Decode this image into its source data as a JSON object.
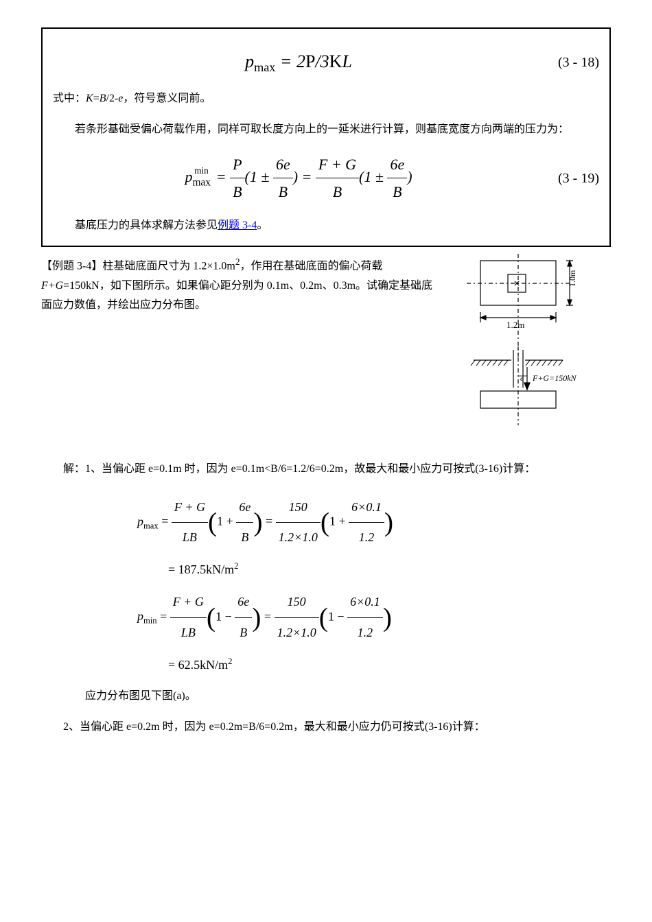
{
  "box": {
    "eq318": {
      "formula_html": "<span class='math'>p<span class='sub upright'>max</span> = 2<span class='upright'>P</span>/3<span class='upright'>K</span>L</span>",
      "num": "(3 - 18)"
    },
    "line1": "式中：<span class='math'>K</span>=<span class='math'>B</span>/2-<span class='math'>e</span>，符号意义同前。",
    "para2": "若条形基础受偏心荷载作用，同样可取长度方向上的一延米进行计算，则基底宽度方向两端的压力为：",
    "eq319": {
      "formula_html": "<span class='math'>p</span><span class='sub'><span class='upright'>max</span></span><span style='font-size:0.6em;vertical-align:0.9em;margin-left:-1.8em'><span class='upright'>min</span></span> &nbsp;= <span class='frac'><span class='num'>P</span><span class='den'>B</span></span>(1 ± <span class='frac'><span class='num'>6e</span><span class='den'>B</span></span>) = <span class='frac'><span class='num'>F + G</span><span class='den'>B</span></span>(1 ± <span class='frac'><span class='num'>6e</span><span class='den'>B</span></span>)",
      "num": "(3 - 19)"
    },
    "line3_prefix": "基底压力的具体求解方法参见",
    "line3_link": "例题 3-4",
    "line3_suffix": "。"
  },
  "example_intro": "【例题 3-4】柱基础底面尺寸为 1.2×1.0m<sup>2</sup>，作用在基础底面的偏心荷载 <span class='math'>F+G</span>=150kN，如下图所示。如果偏心距分别为 0.1m、0.2m、0.3m。试确定基础底面应力数值，并绘出应力分布图。",
  "diagram": {
    "width_label": "1.2m",
    "height_label": "1.0m",
    "load_label": "F+G=150kN",
    "e_label": "e"
  },
  "sol_line1": "解：1、当偏心距 e=0.1m 时，因为 e=0.1m&lt;B/6=1.2/6=0.2m，故最大和最小应力可按式(3-16)计算：",
  "calc1": {
    "l1": "<span class='math'>p<span class='sub upright'>max</span></span> = <span class='frac'><span class='num'>F + G</span><span class='den'>LB</span></span><span class='big-paren'>(</span>1 + <span class='frac'><span class='num'>6e</span><span class='den'>B</span></span><span class='big-paren'>)</span> = <span class='frac'><span class='num'>150</span><span class='den'>1.2×1.0</span></span><span class='big-paren'>(</span>1 + <span class='frac'><span class='num'>6×0.1</span><span class='den'>1.2</span></span><span class='big-paren'>)</span>",
    "l2": "= 187.5kN/m<span class='sup'>2</span>",
    "l3": "<span class='math'>p<span class='sub upright'>min</span></span> = <span class='frac'><span class='num'>F + G</span><span class='den'>LB</span></span><span class='big-paren'>(</span>1 − <span class='frac'><span class='num'>6e</span><span class='den'>B</span></span><span class='big-paren'>)</span> = <span class='frac'><span class='num'>150</span><span class='den'>1.2×1.0</span></span><span class='big-paren'>(</span>1 − <span class='frac'><span class='num'>6×0.1</span><span class='den'>1.2</span></span><span class='big-paren'>)</span>",
    "l4": "= 62.5kN/m<span class='sup'>2</span>"
  },
  "after_calc": "应力分布图见下图(a)。",
  "sol_line2": "2、当偏心距 e=0.2m 时，因为 e=0.2m=B/6=0.2m，最大和最小应力仍可按式(3-16)计算："
}
